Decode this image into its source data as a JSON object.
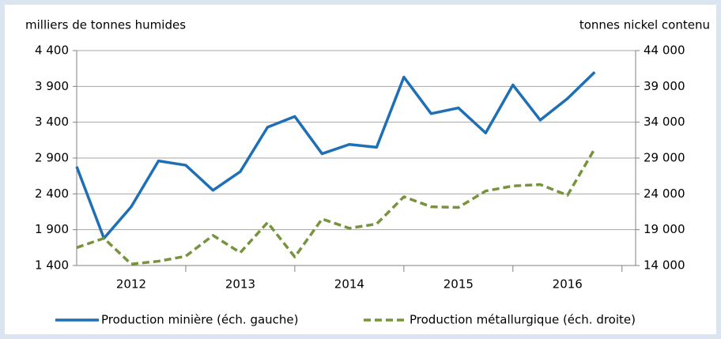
{
  "chart_data": {
    "type": "line",
    "y_label": "milliers de tonnes humides",
    "y2_label": "tonnes nickel contenu",
    "groups": [
      "2012",
      "2013",
      "2014",
      "2015",
      "2016"
    ],
    "categories": [
      null,
      null,
      null,
      null,
      null,
      null,
      null,
      null,
      null,
      null,
      null,
      null,
      null,
      null,
      null,
      null,
      null,
      null,
      null,
      null
    ],
    "ylim": [
      1400,
      4400
    ],
    "yticks": [
      {
        "value": 1400,
        "label": "1 400"
      },
      {
        "value": 1900,
        "label": "1 900"
      },
      {
        "value": 2400,
        "label": "2 400"
      },
      {
        "value": 2900,
        "label": "2 900"
      },
      {
        "value": 3400,
        "label": "3 400"
      },
      {
        "value": 3900,
        "label": "3 900"
      },
      {
        "value": 4400,
        "label": "4 400"
      }
    ],
    "y2lim": [
      14000,
      44000
    ],
    "y2ticks": [
      {
        "value": 14000,
        "label": "14 000"
      },
      {
        "value": 19000,
        "label": "19 000"
      },
      {
        "value": 24000,
        "label": "24 000"
      },
      {
        "value": 29000,
        "label": "29 000"
      },
      {
        "value": 34000,
        "label": "34 000"
      },
      {
        "value": 39000,
        "label": "39 000"
      },
      {
        "value": 44000,
        "label": "44 000"
      }
    ],
    "grid": true,
    "legend": "bottom",
    "series": [
      {
        "name": "Production minière (éch. gauche)",
        "color": "#1f6fb5",
        "dash": "solid",
        "axis": "y",
        "values": [
          2780,
          1780,
          2220,
          2860,
          2800,
          2450,
          2710,
          3330,
          3480,
          2960,
          3090,
          3050,
          4030,
          3520,
          3600,
          3250,
          3920,
          3430,
          3730,
          4100
        ]
      },
      {
        "name": "Production métallurgique (éch. droite)",
        "color": "#77933c",
        "dash": "dashed",
        "axis": "y2",
        "values": [
          16500,
          17800,
          14200,
          14600,
          15300,
          18200,
          15800,
          20000,
          15200,
          20500,
          19200,
          19800,
          23600,
          22200,
          22100,
          24400,
          25100,
          25300,
          23800,
          30300
        ]
      }
    ]
  }
}
